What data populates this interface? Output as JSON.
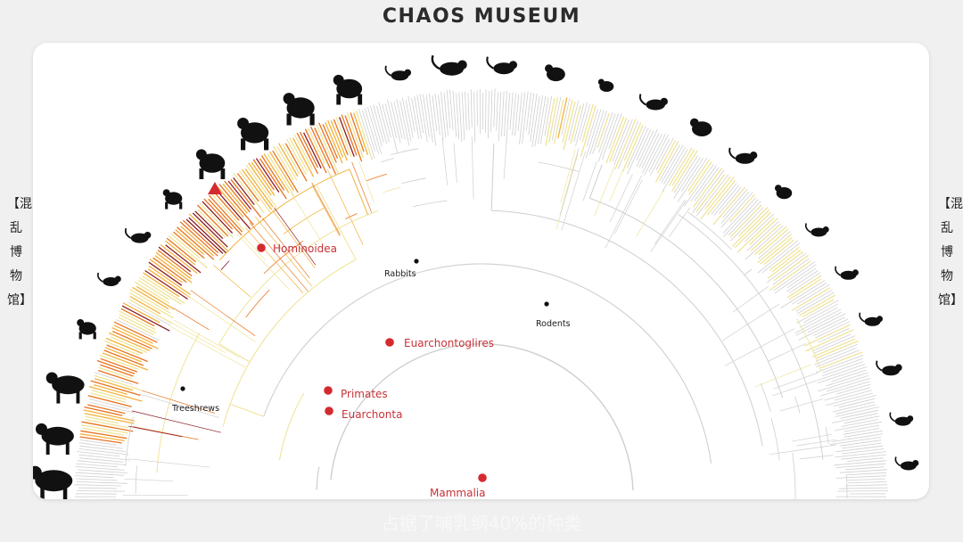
{
  "header": {
    "title": "CHAOS MUSEUM"
  },
  "side_label": {
    "text": "【混乱博物馆】"
  },
  "caption": {
    "text": "占据了哺乳纲40%的种类"
  },
  "tree": {
    "clades": [
      {
        "id": "hominoidea",
        "label": "Hominoidea",
        "style": "red"
      },
      {
        "id": "euarchontoglires",
        "label": "Euarchontoglires",
        "style": "red"
      },
      {
        "id": "primates",
        "label": "Primates",
        "style": "red"
      },
      {
        "id": "euarchonta",
        "label": "Euarchonta",
        "style": "red"
      },
      {
        "id": "mammalia",
        "label": "Mammalia",
        "style": "red"
      },
      {
        "id": "rabbits",
        "label": "Rabbits",
        "style": "black"
      },
      {
        "id": "rodents",
        "label": "Rodents",
        "style": "black"
      },
      {
        "id": "treeshrews",
        "label": "Treeshrews",
        "style": "black"
      }
    ],
    "colors": {
      "branch_gray": "#cfcfcf",
      "heat_light": "#efe49a",
      "heat_mid": "#f2b23c",
      "heat_high": "#e8731f",
      "heat_max": "#8c1c24",
      "marker_red": "#d42a2f",
      "node_black": "#111111",
      "silhouette": "#111111"
    }
  }
}
